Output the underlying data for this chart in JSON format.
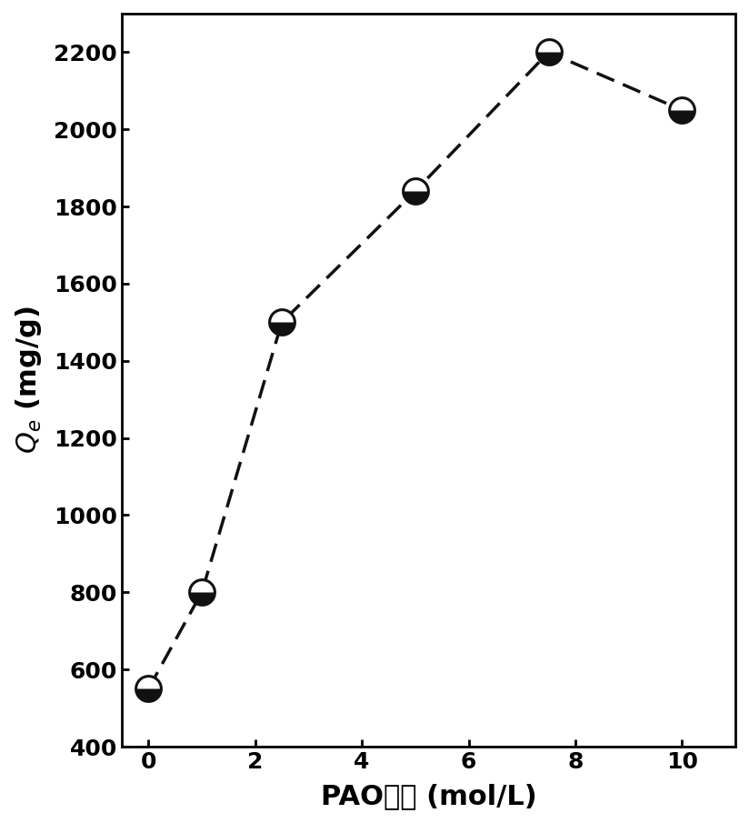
{
  "x": [
    0,
    1,
    2.5,
    5,
    7.5,
    10
  ],
  "y": [
    550,
    800,
    1500,
    1840,
    2200,
    2050
  ],
  "xlabel": "PAO浓度 (mol/L)",
  "ylabel": "$Q_{e}$ (mg/g)",
  "xlim": [
    -0.5,
    11
  ],
  "ylim": [
    400,
    2300
  ],
  "xticks": [
    0,
    2,
    4,
    6,
    8,
    10
  ],
  "yticks": [
    400,
    600,
    800,
    1000,
    1200,
    1400,
    1600,
    1800,
    2000,
    2200
  ],
  "marker_size": 20,
  "line_color": "#111111",
  "line_width": 2.5,
  "bg_color": "#ffffff",
  "tick_label_fontsize": 18,
  "axis_label_fontsize": 22
}
